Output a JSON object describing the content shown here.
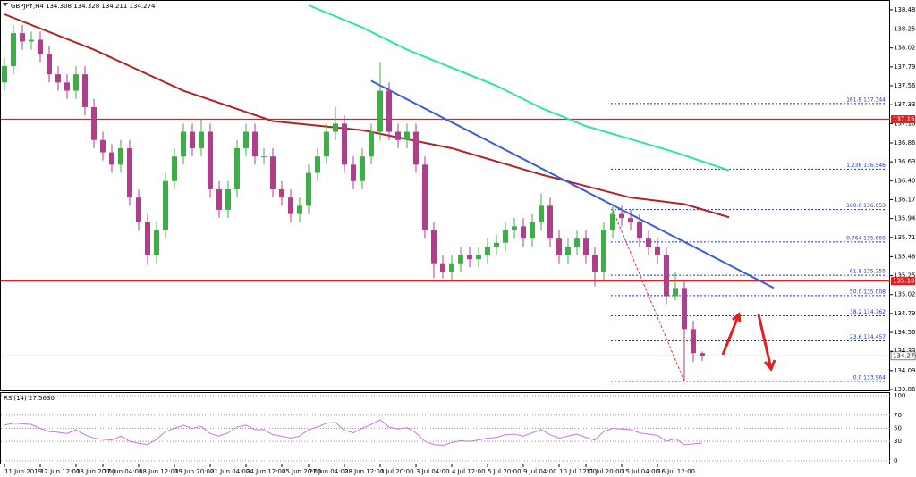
{
  "chart_data": {
    "type": "candlestick",
    "title": "GBPJPY,H4 134.308 134.328 134.211 134.274",
    "up_color": "#3fae49",
    "down_color": "#b03f8a",
    "open": [
      137.6,
      137.8,
      138.2,
      138.1,
      138.12,
      137.95,
      137.7,
      137.6,
      137.5,
      137.7,
      137.3,
      136.9,
      136.75,
      136.6,
      136.8,
      136.2,
      135.9,
      135.5,
      135.8,
      136.4,
      136.7,
      137.0,
      136.8,
      137.0,
      136.3,
      136.05,
      136.3,
      136.8,
      137.0,
      136.7,
      136.7,
      136.3,
      136.2,
      136.0,
      136.1,
      136.5,
      136.7,
      137.0,
      137.1,
      136.6,
      136.4,
      136.7,
      137.0,
      137.5,
      137.0,
      136.9,
      137.0,
      136.6,
      135.8,
      135.4,
      135.3,
      135.4,
      135.5,
      135.45,
      135.5,
      135.6,
      135.65,
      135.8,
      135.85,
      135.7,
      135.9,
      136.1,
      135.7,
      135.5,
      135.6,
      135.7,
      135.5,
      135.3,
      135.8,
      136.0,
      135.95,
      135.9,
      135.7,
      135.6,
      135.5,
      135.0,
      135.1,
      134.6,
      134.308
    ],
    "high": [
      137.9,
      138.3,
      138.3,
      138.22,
      138.22,
      138.05,
      137.8,
      137.7,
      137.8,
      137.8,
      137.4,
      137.0,
      136.85,
      136.9,
      136.9,
      136.3,
      136.0,
      135.9,
      136.5,
      136.8,
      137.1,
      137.1,
      137.15,
      137.1,
      136.4,
      136.4,
      136.9,
      137.1,
      137.1,
      136.8,
      136.8,
      136.4,
      136.3,
      136.2,
      136.6,
      136.8,
      137.1,
      137.3,
      137.2,
      136.7,
      136.8,
      137.1,
      137.85,
      137.6,
      137.1,
      137.1,
      137.1,
      136.7,
      135.9,
      135.5,
      135.5,
      135.6,
      135.6,
      135.6,
      135.7,
      135.75,
      135.9,
      135.95,
      135.95,
      136.0,
      136.25,
      136.2,
      135.8,
      135.7,
      135.8,
      135.8,
      135.6,
      135.9,
      136.1,
      136.1,
      136.05,
      136.0,
      135.8,
      135.7,
      135.6,
      135.3,
      135.2,
      134.7,
      134.328
    ],
    "low": [
      137.5,
      137.7,
      138.0,
      138.0,
      137.85,
      137.6,
      137.5,
      137.4,
      137.4,
      137.2,
      136.8,
      136.65,
      136.5,
      136.5,
      136.1,
      135.8,
      135.38,
      135.4,
      135.7,
      136.3,
      136.6,
      136.7,
      136.7,
      136.2,
      135.95,
      135.95,
      136.2,
      136.7,
      136.6,
      136.6,
      136.2,
      136.1,
      135.9,
      135.9,
      136.0,
      136.4,
      136.6,
      136.9,
      136.5,
      136.3,
      136.3,
      136.6,
      136.9,
      136.9,
      136.8,
      136.8,
      136.5,
      135.7,
      135.22,
      135.22,
      135.2,
      135.3,
      135.35,
      135.35,
      135.4,
      135.5,
      135.55,
      135.7,
      135.6,
      135.6,
      135.8,
      135.6,
      135.4,
      135.4,
      135.5,
      135.4,
      135.12,
      135.2,
      135.7,
      135.85,
      135.8,
      135.6,
      135.5,
      135.4,
      134.9,
      134.95,
      133.964,
      134.2,
      134.211
    ],
    "close": [
      137.8,
      138.2,
      138.1,
      138.12,
      137.95,
      137.7,
      137.6,
      137.5,
      137.7,
      137.3,
      136.9,
      136.75,
      136.6,
      136.8,
      136.2,
      135.9,
      135.5,
      135.8,
      136.4,
      136.7,
      137.0,
      136.8,
      137.0,
      136.3,
      136.05,
      136.3,
      136.8,
      137.0,
      136.7,
      136.7,
      136.3,
      136.2,
      136.0,
      136.1,
      136.5,
      136.7,
      137.0,
      137.1,
      136.6,
      136.4,
      136.7,
      137.0,
      137.5,
      137.0,
      136.9,
      137.0,
      136.6,
      135.8,
      135.4,
      135.3,
      135.4,
      135.5,
      135.45,
      135.5,
      135.6,
      135.65,
      135.8,
      135.85,
      135.7,
      135.9,
      136.1,
      135.7,
      135.5,
      135.6,
      135.7,
      135.5,
      135.3,
      135.8,
      136.0,
      135.95,
      135.9,
      135.7,
      135.6,
      135.5,
      135.0,
      135.1,
      134.6,
      134.308,
      134.274
    ],
    "ylim": [
      133.854,
      138.593
    ],
    "yticks": [
      {
        "value": 138.485,
        "label": "138.485"
      },
      {
        "value": 138.25,
        "label": "138.250"
      },
      {
        "value": 138.02,
        "label": "138.020"
      },
      {
        "value": 137.79,
        "label": "137.790"
      },
      {
        "value": 137.56,
        "label": "137.560"
      },
      {
        "value": 137.33,
        "label": "137.330"
      },
      {
        "value": 137.1,
        "label": "137.100"
      },
      {
        "value": 136.865,
        "label": "136.865"
      },
      {
        "value": 136.635,
        "label": "136.635"
      },
      {
        "value": 136.405,
        "label": "136.405"
      },
      {
        "value": 136.175,
        "label": "136.175"
      },
      {
        "value": 135.945,
        "label": "135.945"
      },
      {
        "value": 135.715,
        "label": "135.715"
      },
      {
        "value": 135.48,
        "label": "135.480"
      },
      {
        "value": 135.25,
        "label": "135.250"
      },
      {
        "value": 135.02,
        "label": "135.020"
      },
      {
        "value": 134.79,
        "label": "134.790"
      },
      {
        "value": 134.56,
        "label": "134.560"
      },
      {
        "value": 134.33,
        "label": "134.330"
      },
      {
        "value": 134.095,
        "label": "134.095"
      },
      {
        "value": 133.865,
        "label": "133.865"
      }
    ],
    "xticks": [
      {
        "value": 0,
        "label": "11 Jun 2019"
      },
      {
        "value": 4,
        "label": "12 Jun 12:00"
      },
      {
        "value": 8,
        "label": "13 Jun 20:00"
      },
      {
        "value": 11,
        "label": "17 Jun 04:00"
      },
      {
        "value": 15,
        "label": "18 Jun 12:00"
      },
      {
        "value": 19,
        "label": "19 Jun 20:00"
      },
      {
        "value": 23,
        "label": "21 Jun 04:00"
      },
      {
        "value": 27,
        "label": "24 Jun 12:00"
      },
      {
        "value": 31,
        "label": "25 Jun 20:00"
      },
      {
        "value": 34,
        "label": "27 Jun 04:00"
      },
      {
        "value": 38,
        "label": "28 Jun 12:00"
      },
      {
        "value": 42,
        "label": "1 Jul 20:00"
      },
      {
        "value": 46,
        "label": "3 Jul 04:00"
      },
      {
        "value": 50,
        "label": "4 Jul 12:00"
      },
      {
        "value": 54,
        "label": "5 Jul 20:00"
      },
      {
        "value": 58,
        "label": "9 Jul 04:00"
      },
      {
        "value": 62,
        "label": "10 Jul 12:00"
      },
      {
        "value": 65,
        "label": "11 Jul 20:00"
      },
      {
        "value": 69,
        "label": "15 Jul 04:00"
      },
      {
        "value": 73,
        "label": "16 Jul 12:00"
      }
    ],
    "moving_averages": [
      {
        "color": "#b22222",
        "x": [
          0,
          10,
          20,
          30,
          40,
          50,
          60,
          70,
          76,
          81
        ],
        "values": [
          138.43,
          138.0,
          137.5,
          137.13,
          137.02,
          136.8,
          136.48,
          136.2,
          136.12,
          135.96
        ]
      },
      {
        "color": "#2ee59d",
        "x": [
          34,
          40,
          45,
          50,
          55,
          60,
          65,
          70,
          75,
          81
        ],
        "values": [
          138.54,
          138.27,
          138.0,
          137.78,
          137.56,
          137.29,
          137.07,
          136.91,
          136.75,
          136.53
        ]
      }
    ],
    "trendlines": [
      {
        "color": "#3b5bdb",
        "x": [
          41,
          86
        ],
        "values": [
          137.62,
          135.1
        ]
      },
      {
        "color": "#e03030",
        "dash": true,
        "x": [
          68,
          76
        ],
        "values": [
          136.05,
          133.964
        ]
      }
    ],
    "hlines": [
      {
        "value": 137.153,
        "color": "#e02020"
      },
      {
        "value": 135.184,
        "color": "#e02020"
      }
    ],
    "current_price": 134.274,
    "fib_color": "#2233cc",
    "fib_levels": [
      {
        "value": 137.344,
        "label": "161.8 137.344"
      },
      {
        "value": 136.546,
        "label": "1.236 136.546"
      },
      {
        "value": 136.053,
        "label": "100.0 136.053"
      },
      {
        "value": 135.66,
        "label": "0.764 135.660"
      },
      {
        "value": 135.255,
        "label": "61.8 135.255"
      },
      {
        "value": 135.008,
        "label": "50.0 135.008"
      },
      {
        "value": 134.762,
        "label": "38.2 134.762"
      },
      {
        "value": 134.457,
        "label": "23.6 134.457"
      },
      {
        "value": 133.964,
        "label": "0.0 133.964"
      }
    ],
    "rsi": {
      "label": "RSI(14) 27.5630",
      "color": "#c678dd",
      "ylim": [
        0,
        100
      ],
      "yticks": [
        100,
        70,
        50,
        30,
        0
      ],
      "values": [
        55,
        58,
        57,
        56,
        50,
        45,
        44,
        42,
        48,
        40,
        35,
        33,
        32,
        38,
        30,
        27,
        25,
        33,
        45,
        50,
        55,
        50,
        53,
        42,
        38,
        43,
        52,
        55,
        48,
        48,
        40,
        38,
        35,
        38,
        48,
        52,
        58,
        59,
        47,
        43,
        50,
        56,
        63,
        52,
        49,
        51,
        43,
        30,
        25,
        24,
        28,
        31,
        30,
        32,
        35,
        36,
        40,
        41,
        38,
        43,
        48,
        40,
        35,
        38,
        41,
        36,
        32,
        45,
        50,
        49,
        48,
        43,
        41,
        39,
        30,
        34,
        25,
        26,
        27.563
      ]
    }
  }
}
